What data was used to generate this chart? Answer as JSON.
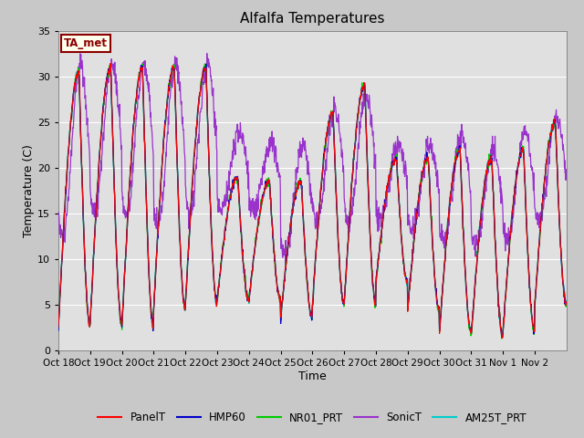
{
  "title": "Alfalfa Temperatures",
  "xlabel": "Time",
  "ylabel": "Temperature (C)",
  "ylim": [
    0,
    35
  ],
  "yticks": [
    0,
    5,
    10,
    15,
    20,
    25,
    30,
    35
  ],
  "annotation_text": "TA_met",
  "annotation_color": "#8B0000",
  "annotation_bg": "#FFFFEE",
  "annotation_border": "#8B0000",
  "fig_bg": "#C8C8C8",
  "plot_bg": "#E0E0E0",
  "grid_color": "#FFFFFF",
  "series_colors": {
    "PanelT": "#FF0000",
    "HMP60": "#0000CC",
    "NR01_PRT": "#00CC00",
    "SonicT": "#9933CC",
    "AM25T_PRT": "#00CCCC"
  },
  "x_labels": [
    "Oct 18",
    "Oct 19",
    "Oct 20",
    "Oct 21",
    "Oct 22",
    "Oct 23",
    "Oct 24",
    "Oct 25",
    "Oct 26",
    "Oct 27",
    "Oct 28",
    "Oct 29",
    "Oct 30",
    "Oct 31",
    "Nov 1",
    "Nov 2"
  ],
  "num_days": 16,
  "points_per_day": 96,
  "figsize": [
    6.4,
    4.8
  ],
  "dpi": 100
}
